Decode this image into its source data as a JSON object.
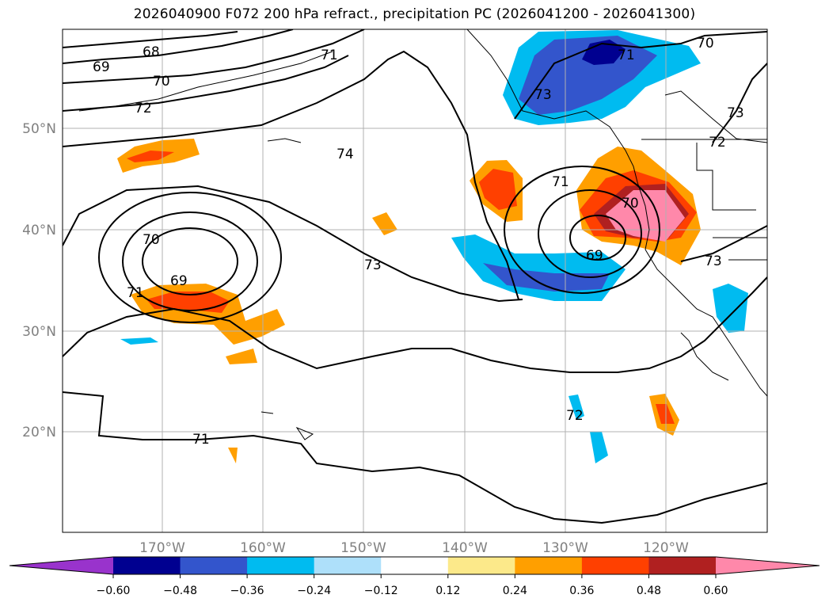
{
  "title": "2026040900 F072 200 hPa refract., precipitation PC (2026041200 - 2026041300)",
  "latitude_labels": [
    "50°N",
    "40°N",
    "30°N",
    "20°N"
  ],
  "longitude_labels": [
    "170°W",
    "160°W",
    "150°W",
    "140°W",
    "130°W",
    "120°W"
  ],
  "contour_labels": [
    "68",
    "69",
    "70",
    "71",
    "72",
    "73",
    "74",
    "71",
    "70",
    "73",
    "72",
    "69",
    "70",
    "71",
    "73",
    "69",
    "70",
    "71",
    "72",
    "71",
    "73"
  ],
  "colorbar": {
    "ticks": [
      "−0.60",
      "−0.48",
      "−0.36",
      "−0.24",
      "−0.12",
      "0.12",
      "0.24",
      "0.36",
      "0.48",
      "0.60"
    ],
    "colors": [
      "#9933cc",
      "#000090",
      "#3355cc",
      "#00bbf0",
      "#aee0fa",
      "#ffffff",
      "#fce98a",
      "#ff9f00",
      "#ff4000",
      "#b02020",
      "#ff88aa"
    ]
  }
}
